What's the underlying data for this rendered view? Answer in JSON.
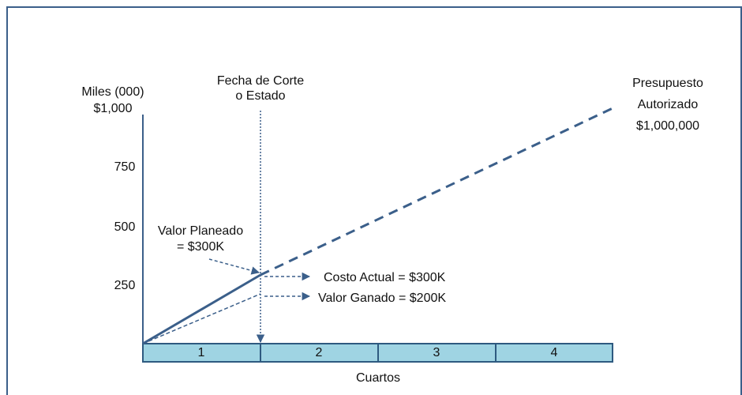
{
  "annotations": {
    "cutoff": [
      "Fecha de Corte",
      "o Estado"
    ],
    "budget": [
      "Presupuesto",
      "Autorizado",
      "$1,000,000"
    ],
    "planned_value": [
      "Valor Planeado",
      "= $300K"
    ],
    "actual_cost": "Costo Actual = $300K",
    "earned_value": "Valor Ganado = $200K"
  },
  "y_axis": {
    "label": "Miles (000)",
    "ticks": [
      "$1,000",
      "750",
      "500",
      "250"
    ]
  },
  "x_axis": {
    "label": "Cuartos",
    "quarters": [
      "1",
      "2",
      "3",
      "4"
    ]
  }
}
